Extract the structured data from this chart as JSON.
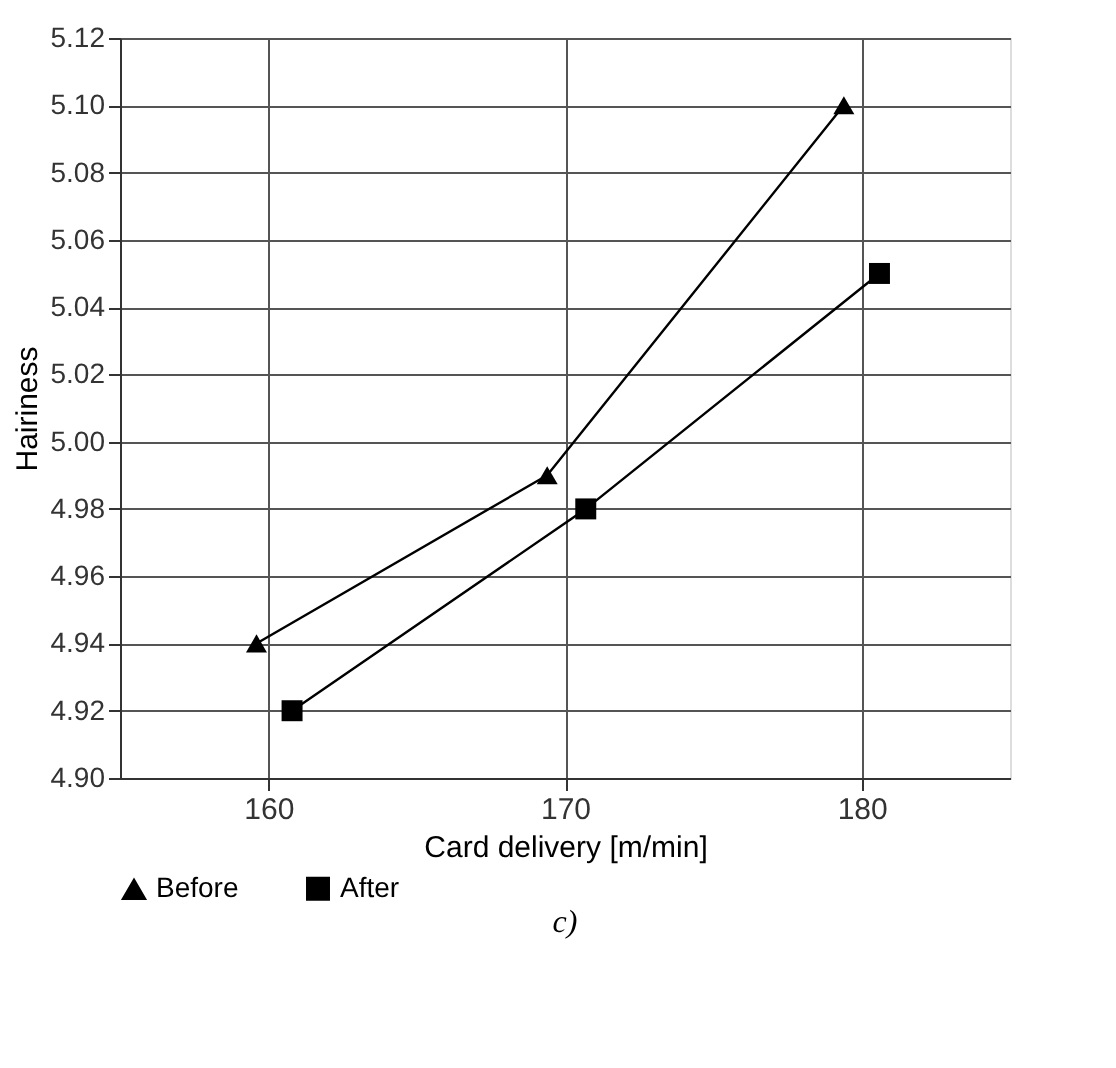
{
  "chart_data": {
    "type": "line",
    "xlabel": "Card delivery [m/min]",
    "ylabel": "Hairiness",
    "xlim": [
      155,
      185
    ],
    "xticks": [
      160,
      170,
      180
    ],
    "ylim": [
      4.9,
      5.12
    ],
    "yticks": [
      {
        "value": 4.9,
        "label": "4.90"
      },
      {
        "value": 4.92,
        "label": "4.92"
      },
      {
        "value": 4.94,
        "label": "4.94"
      },
      {
        "value": 4.96,
        "label": "4.96"
      },
      {
        "value": 4.98,
        "label": "4.98"
      },
      {
        "value": 5.0,
        "label": "5.00"
      },
      {
        "value": 5.02,
        "label": "5.02"
      },
      {
        "value": 5.04,
        "label": "5.04"
      },
      {
        "value": 5.06,
        "label": "5.06"
      },
      {
        "value": 5.08,
        "label": "5.08"
      },
      {
        "value": 5.1,
        "label": "5.10"
      },
      {
        "value": 5.12,
        "label": "5.12"
      }
    ],
    "grid": true,
    "legend": "bottom",
    "line_style": "solid",
    "series": [
      {
        "name": "Before",
        "color": "#000000",
        "marker": "triangle",
        "x": [
          159.6,
          169.4,
          179.4
        ],
        "values": [
          4.94,
          4.99,
          5.1
        ]
      },
      {
        "name": "After",
        "color": "#000000",
        "marker": "square",
        "x": [
          160.8,
          170.7,
          180.6
        ],
        "values": [
          4.92,
          4.98,
          5.05
        ]
      }
    ],
    "annotations": [
      "c)"
    ]
  }
}
